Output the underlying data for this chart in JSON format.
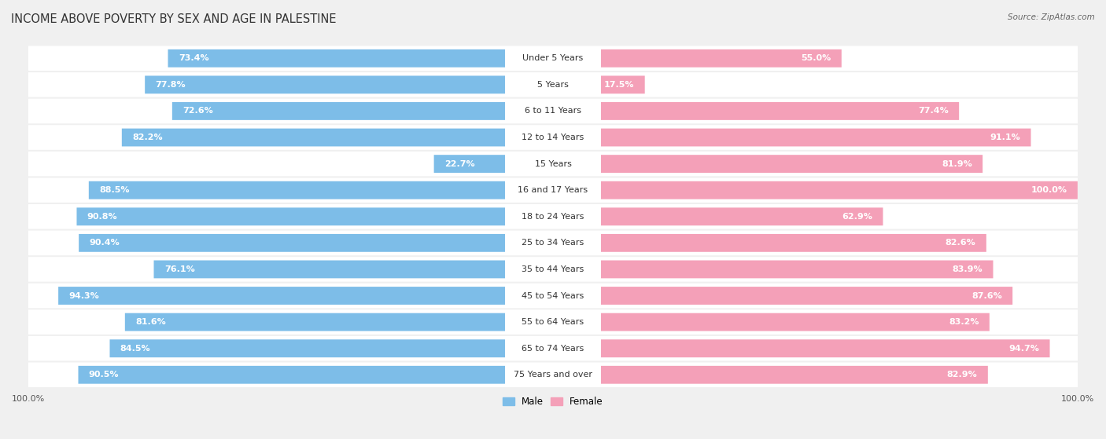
{
  "title": "INCOME ABOVE POVERTY BY SEX AND AGE IN PALESTINE",
  "source": "Source: ZipAtlas.com",
  "categories": [
    "Under 5 Years",
    "5 Years",
    "6 to 11 Years",
    "12 to 14 Years",
    "15 Years",
    "16 and 17 Years",
    "18 to 24 Years",
    "25 to 34 Years",
    "35 to 44 Years",
    "45 to 54 Years",
    "55 to 64 Years",
    "65 to 74 Years",
    "75 Years and over"
  ],
  "male_values": [
    73.4,
    77.8,
    72.6,
    82.2,
    22.7,
    88.5,
    90.8,
    90.4,
    76.1,
    94.3,
    81.6,
    84.5,
    90.5
  ],
  "female_values": [
    55.0,
    17.5,
    77.4,
    91.1,
    81.9,
    100.0,
    62.9,
    82.6,
    83.9,
    87.6,
    83.2,
    94.7,
    82.9
  ],
  "male_color": "#7dbde8",
  "female_color": "#f4a0b8",
  "male_label": "Male",
  "female_label": "Female",
  "background_color": "#f0f0f0",
  "bar_bg_color": "#ffffff",
  "row_bg_color": "#e8e8e8",
  "title_fontsize": 10.5,
  "label_fontsize": 8.5,
  "value_fontsize": 8,
  "axis_label_fontsize": 8
}
